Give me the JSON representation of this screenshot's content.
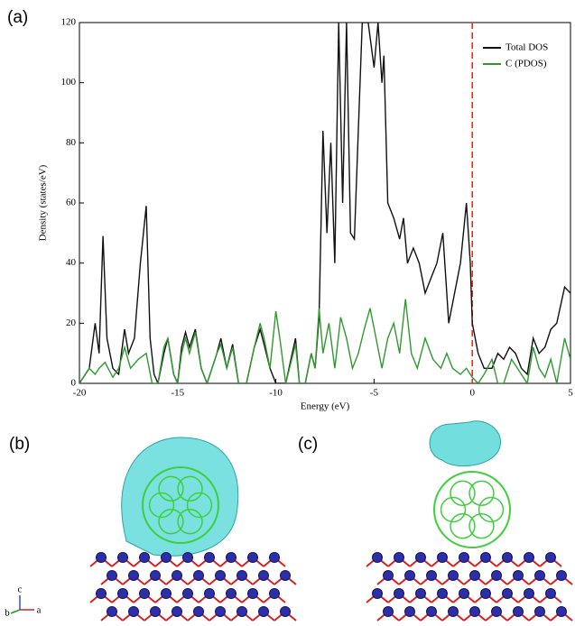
{
  "chart_data": {
    "type": "line",
    "xlabel": "Energy (eV)",
    "ylabel": "Density (states/eV)",
    "xlim": [
      -20,
      5
    ],
    "xticks": [
      -20,
      -15,
      -10,
      -5,
      0,
      5
    ],
    "ylim": [
      0,
      120
    ],
    "yticks": [
      0,
      20,
      40,
      60,
      80,
      100,
      120
    ],
    "vline": {
      "x": 0,
      "color": "#e8301c"
    },
    "legend": "top-right",
    "series": [
      {
        "name": "Total DOS",
        "color": "#111111",
        "x": [
          -20,
          -19.5,
          -19.2,
          -19,
          -18.8,
          -18.6,
          -18.3,
          -18,
          -17.7,
          -17.5,
          -17.2,
          -16.9,
          -16.6,
          -16.4,
          -16.2,
          -16,
          -15.7,
          -15.5,
          -15.2,
          -15,
          -14.8,
          -14.6,
          -14.4,
          -14.1,
          -13.8,
          -13.5,
          -13,
          -12.8,
          -12.5,
          -12.2,
          -11.9,
          -11.5,
          -11.1,
          -10.8,
          -10.6,
          -10.3,
          -10,
          -9.5,
          -9,
          -8.8,
          -8.5,
          -8.2,
          -8,
          -7.8,
          -7.6,
          -7.4,
          -7.2,
          -7,
          -6.8,
          -6.6,
          -6.4,
          -6.2,
          -6,
          -5.6,
          -5.3,
          -5,
          -4.8,
          -4.6,
          -4.5,
          -4.3,
          -4,
          -3.7,
          -3.5,
          -3.3,
          -3,
          -2.7,
          -2.4,
          -2.1,
          -1.8,
          -1.5,
          -1.2,
          -0.9,
          -0.6,
          -0.3,
          -0.1,
          0,
          0.3,
          0.6,
          1,
          1.3,
          1.6,
          1.9,
          2.2,
          2.5,
          2.8,
          3.1,
          3.4,
          3.7,
          4,
          4.3,
          4.7,
          5
        ],
        "values": [
          0,
          5,
          20,
          10,
          49,
          15,
          5,
          3,
          18,
          10,
          15,
          40,
          59,
          15,
          3,
          0,
          10,
          15,
          3,
          0,
          12,
          17,
          12,
          18,
          5,
          0,
          10,
          15,
          5,
          13,
          0,
          0,
          12,
          18,
          13,
          5,
          0,
          0,
          15,
          0,
          0,
          10,
          5,
          22,
          84,
          50,
          80,
          40,
          120,
          60,
          120,
          50,
          48,
          120,
          120,
          105,
          120,
          100,
          109,
          60,
          55,
          48,
          55,
          40,
          45,
          40,
          30,
          35,
          40,
          50,
          20,
          30,
          40,
          60,
          40,
          20,
          10,
          5,
          5,
          10,
          8,
          12,
          10,
          5,
          3,
          15,
          10,
          12,
          18,
          20,
          32,
          30
        ]
      },
      {
        "name": "C (PDOS)",
        "color": "#2e9a2e",
        "x": [
          -20,
          -19.5,
          -19.2,
          -19,
          -18.7,
          -18.3,
          -18,
          -17.7,
          -17.4,
          -17,
          -16.6,
          -16.3,
          -16,
          -15.7,
          -15.5,
          -15.2,
          -15,
          -14.8,
          -14.6,
          -14.4,
          -14.1,
          -13.8,
          -13.5,
          -13,
          -12.8,
          -12.5,
          -12.2,
          -11.9,
          -11.5,
          -11.1,
          -10.8,
          -10.6,
          -10.3,
          -10,
          -9.8,
          -9.5,
          -9,
          -8.8,
          -8.5,
          -8.2,
          -8,
          -7.8,
          -7.6,
          -7.3,
          -7,
          -6.7,
          -6.4,
          -6.1,
          -5.8,
          -5.5,
          -5.2,
          -4.9,
          -4.6,
          -4.3,
          -4,
          -3.7,
          -3.4,
          -3.1,
          -2.8,
          -2.4,
          -2,
          -1.6,
          -1.3,
          -1,
          -0.6,
          -0.3,
          0,
          0.3,
          0.6,
          1,
          1.3,
          1.6,
          2,
          2.5,
          2.8,
          3.1,
          3.4,
          3.7,
          4,
          4.3,
          4.7,
          5
        ],
        "values": [
          0,
          5,
          3,
          5,
          7,
          2,
          5,
          12,
          5,
          8,
          10,
          0,
          0,
          12,
          15,
          3,
          0,
          10,
          15,
          10,
          17,
          5,
          0,
          10,
          13,
          5,
          12,
          0,
          0,
          12,
          20,
          15,
          5,
          24,
          15,
          0,
          13,
          0,
          0,
          10,
          5,
          25,
          10,
          20,
          5,
          22,
          15,
          5,
          10,
          18,
          25,
          15,
          5,
          15,
          20,
          10,
          28,
          10,
          5,
          15,
          8,
          5,
          10,
          5,
          3,
          5,
          2,
          0,
          3,
          8,
          0,
          0,
          8,
          3,
          0,
          12,
          5,
          2,
          8,
          0,
          15,
          8
        ]
      }
    ]
  },
  "panels": {
    "a": "(a)",
    "b": "(b)",
    "c": "(c)",
    "axes": [
      "b",
      "c",
      "a"
    ]
  }
}
